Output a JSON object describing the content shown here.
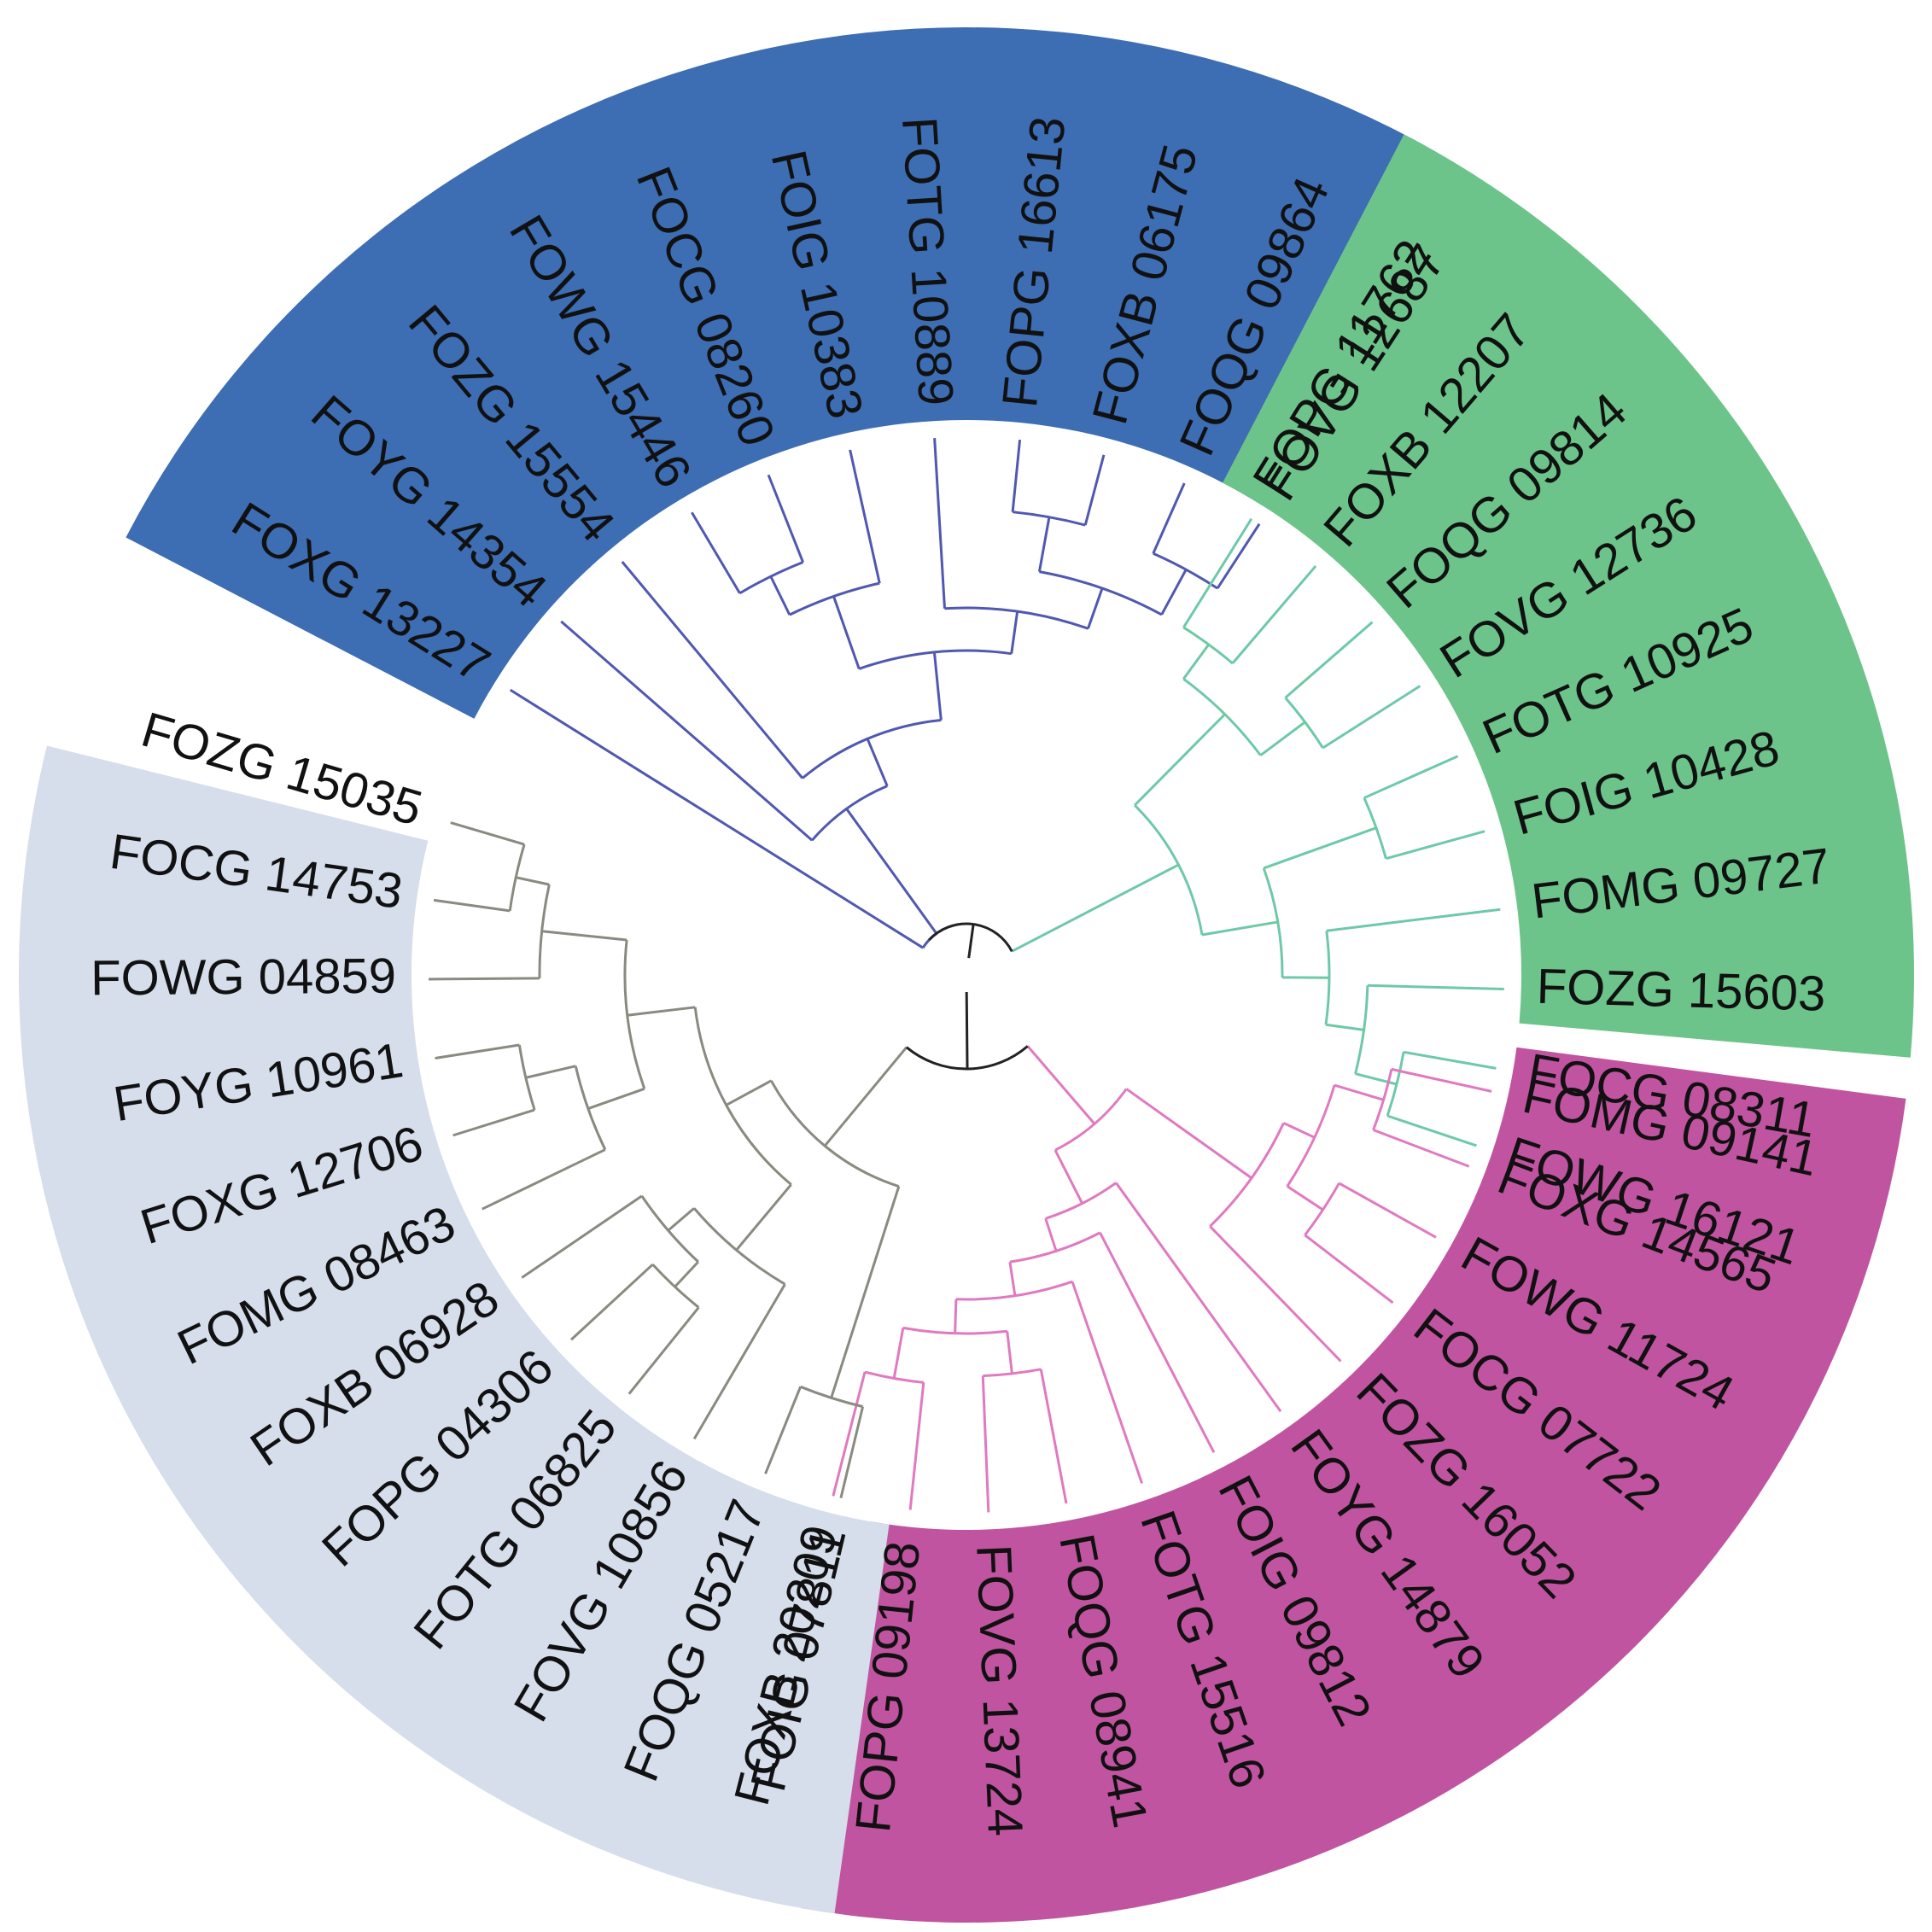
{
  "diagram": {
    "type": "circular-phylogenetic-tree",
    "clades": [
      {
        "id": "blue",
        "band_color": "#3d6db3",
        "branch_color": "#5058b0",
        "leaves": [
          "FOXG 13227",
          "FOYG 14354",
          "FOZG 15554",
          "FOWG 15446",
          "FOCG 08260",
          "FOIG 10383",
          "FOTG 10889",
          "FOPG 16613",
          "FOXB 06175",
          "FOQG 09864",
          "FOVG 12687"
        ]
      },
      {
        "id": "green",
        "band_color": "#6dc48a",
        "branch_color": "#6ec9a7",
        "leaves": [
          "FOPG 11762",
          "FOXB 12207",
          "FOQG 09814",
          "FOVG 12736",
          "FOTG 10925",
          "FOIG 10428",
          "FOMG 09727",
          "FOZG 15603",
          "FOCG 08311",
          "FOWG 16121"
        ]
      },
      {
        "id": "magenta",
        "band_color": "#c054a0",
        "branch_color": "#e07ac0",
        "leaves": [
          "FOMG 09141",
          "FOXG 14565",
          "FOWG 11724",
          "FOCG 07722",
          "FOZG 16052",
          "FOYG 14879",
          "FOIG 09812",
          "FOTG 15516",
          "FOQG 08941",
          "FOVG 13724",
          "FOPG 09198",
          "FOXB 20209"
        ]
      },
      {
        "id": "gray",
        "band_color": "#d6deeb",
        "branch_color": "#8a8a80",
        "leaves": [
          "FOIG 07811",
          "FOQG 05217",
          "FOVG 10856",
          "FOTG 06825",
          "FOPG 04306",
          "FOXB 06928",
          "FOMG 08463",
          "FOXG 12706",
          "FOYG 10961",
          "FOWG 04859",
          "FOCG 14753",
          "FOZG 15035"
        ]
      }
    ],
    "root_color": "#222222"
  }
}
